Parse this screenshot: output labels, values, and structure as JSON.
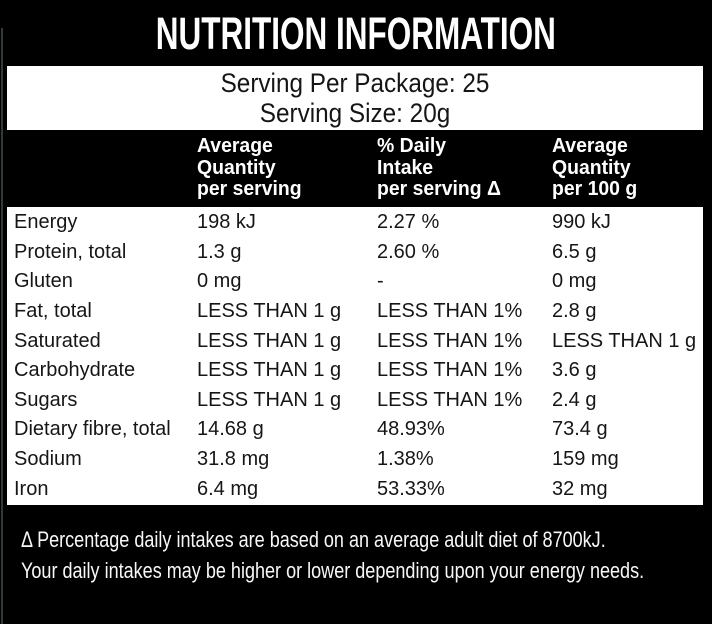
{
  "title": "NUTRITION INFORMATION",
  "serving_info": {
    "per_package": "Serving Per Package: 25",
    "serving_size": "Serving Size: 20g"
  },
  "table": {
    "header": {
      "per_serving": [
        "Average",
        "Quantity",
        "per serving"
      ],
      "daily_intake": [
        "% Daily",
        "Intake",
        "per serving Δ"
      ],
      "per_100g": [
        "Average",
        "Quantity",
        "per 100 g"
      ]
    },
    "rows": [
      {
        "label": "Energy",
        "per_serving": "198 kJ",
        "daily_intake": "2.27 %",
        "per_100g": "990 kJ"
      },
      {
        "label": "Protein, total",
        "per_serving": "1.3 g",
        "daily_intake": "2.60 %",
        "per_100g": "6.5 g"
      },
      {
        "label": "Gluten",
        "per_serving": "0 mg",
        "daily_intake": "-",
        "per_100g": "0 mg"
      },
      {
        "label": "Fat, total",
        "per_serving": "LESS THAN 1 g",
        "daily_intake": "LESS THAN 1%",
        "per_100g": "2.8 g"
      },
      {
        "label": "Saturated",
        "per_serving": "LESS THAN 1 g",
        "daily_intake": "LESS THAN 1%",
        "per_100g": "LESS THAN 1 g"
      },
      {
        "label": "Carbohydrate",
        "per_serving": "LESS THAN 1 g",
        "daily_intake": "LESS THAN 1%",
        "per_100g": "3.6 g"
      },
      {
        "label": "Sugars",
        "per_serving": "LESS THAN 1 g",
        "daily_intake": "LESS THAN 1%",
        "per_100g": "2.4 g"
      },
      {
        "label": "Dietary fibre, total",
        "per_serving": "14.68 g",
        "daily_intake": "48.93%",
        "per_100g": "73.4 g"
      },
      {
        "label": "Sodium",
        "per_serving": "31.8 mg",
        "daily_intake": "1.38%",
        "per_100g": "159 mg"
      },
      {
        "label": "Iron",
        "per_serving": "6.4 mg",
        "daily_intake": "53.33%",
        "per_100g": "32 mg"
      }
    ]
  },
  "footnote": {
    "line1": "Δ Percentage daily intakes are based on an average adult diet of 8700kJ.",
    "line2": "Your daily intakes may be higher or lower depending upon your energy needs."
  },
  "colors": {
    "background": "#000000",
    "panel": "#ffffff",
    "text_dark": "#151515",
    "text_light": "#ffffff"
  }
}
